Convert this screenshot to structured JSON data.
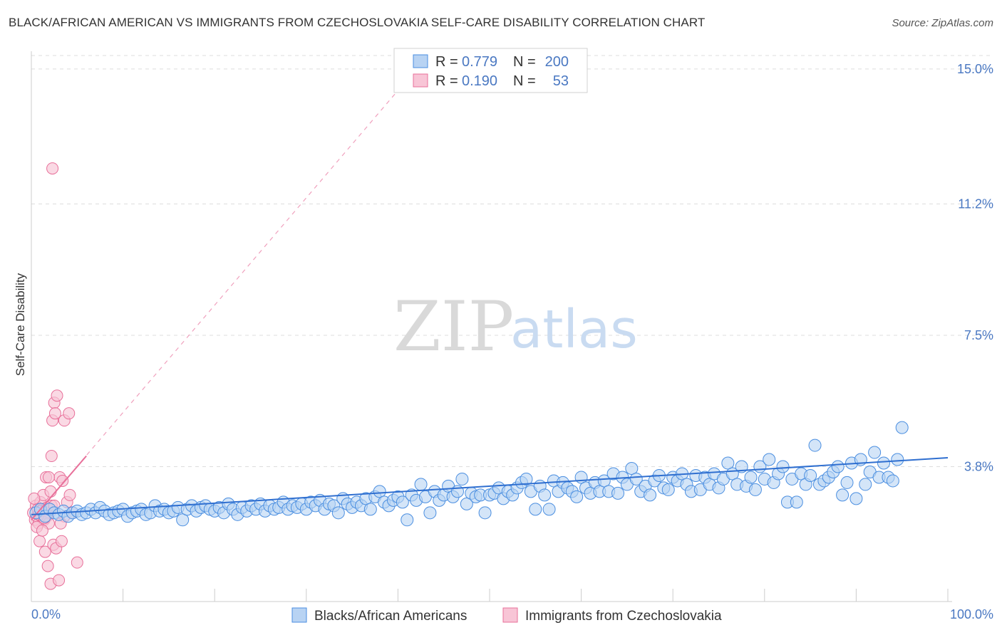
{
  "header": {
    "title": "BLACK/AFRICAN AMERICAN VS IMMIGRANTS FROM CZECHOSLOVAKIA SELF-CARE DISABILITY CORRELATION CHART",
    "source": "Source: ZipAtlas.com"
  },
  "watermark": {
    "zip": "ZIP",
    "atlas": "atlas"
  },
  "legend": {
    "rows": [
      {
        "r_label": "R =",
        "r_value": "0.779",
        "n_label": "N =",
        "n_value": "200"
      },
      {
        "r_label": "R =",
        "r_value": "0.190",
        "n_label": "N =",
        "n_value": "53"
      }
    ]
  },
  "chart_data": {
    "type": "scatter",
    "title": "BLACK/AFRICAN AMERICAN VS IMMIGRANTS FROM CZECHOSLOVAKIA SELF-CARE DISABILITY CORRELATION CHART",
    "xlabel": "",
    "ylabel": "Self-Care Disability",
    "xlim": [
      0,
      100
    ],
    "ylim": [
      0,
      15.5
    ],
    "x_tick_labels": [
      "0.0%",
      "100.0%"
    ],
    "y_ticks": [
      3.8,
      7.5,
      11.2,
      15.0
    ],
    "y_tick_labels": [
      "3.8%",
      "7.5%",
      "11.2%",
      "15.0%"
    ],
    "colors": {
      "blue": "#4a8ee0",
      "blue_fill": "#b8d3f3",
      "pink": "#e8709a",
      "pink_fill": "#f8c5d6",
      "tick": "#4a78c2"
    },
    "series": [
      {
        "name": "Blacks/African Americans",
        "color": "#4a8ee0",
        "r": 0.779,
        "n": 200,
        "trend": {
          "x": [
            0,
            100
          ],
          "y": [
            2.45,
            4.05
          ]
        },
        "points": [
          [
            0.5,
            2.5
          ],
          [
            1,
            2.6
          ],
          [
            1.5,
            2.4
          ],
          [
            2,
            2.6
          ],
          [
            2.5,
            2.5
          ],
          [
            3,
            2.45
          ],
          [
            3.5,
            2.55
          ],
          [
            4,
            2.4
          ],
          [
            4.5,
            2.5
          ],
          [
            5,
            2.55
          ],
          [
            5.5,
            2.45
          ],
          [
            6,
            2.5
          ],
          [
            6.5,
            2.6
          ],
          [
            7,
            2.5
          ],
          [
            7.5,
            2.65
          ],
          [
            8,
            2.55
          ],
          [
            8.5,
            2.45
          ],
          [
            9,
            2.5
          ],
          [
            9.5,
            2.55
          ],
          [
            10,
            2.6
          ],
          [
            10.5,
            2.4
          ],
          [
            11,
            2.5
          ],
          [
            11.5,
            2.55
          ],
          [
            12,
            2.6
          ],
          [
            12.5,
            2.45
          ],
          [
            13,
            2.5
          ],
          [
            13.5,
            2.7
          ],
          [
            14,
            2.55
          ],
          [
            14.5,
            2.6
          ],
          [
            15,
            2.5
          ],
          [
            15.5,
            2.55
          ],
          [
            16,
            2.65
          ],
          [
            16.5,
            2.3
          ],
          [
            17,
            2.6
          ],
          [
            17.5,
            2.7
          ],
          [
            18,
            2.55
          ],
          [
            18.5,
            2.65
          ],
          [
            19,
            2.7
          ],
          [
            19.5,
            2.6
          ],
          [
            20,
            2.55
          ],
          [
            20.5,
            2.65
          ],
          [
            21,
            2.5
          ],
          [
            21.5,
            2.75
          ],
          [
            22,
            2.6
          ],
          [
            22.5,
            2.45
          ],
          [
            23,
            2.65
          ],
          [
            23.5,
            2.55
          ],
          [
            24,
            2.7
          ],
          [
            24.5,
            2.6
          ],
          [
            25,
            2.75
          ],
          [
            25.5,
            2.55
          ],
          [
            26,
            2.7
          ],
          [
            26.5,
            2.6
          ],
          [
            27,
            2.65
          ],
          [
            27.5,
            2.8
          ],
          [
            28,
            2.6
          ],
          [
            28.5,
            2.7
          ],
          [
            29,
            2.65
          ],
          [
            29.5,
            2.75
          ],
          [
            30,
            2.6
          ],
          [
            30.5,
            2.8
          ],
          [
            31,
            2.7
          ],
          [
            31.5,
            2.85
          ],
          [
            32,
            2.6
          ],
          [
            32.5,
            2.75
          ],
          [
            33,
            2.7
          ],
          [
            33.5,
            2.5
          ],
          [
            34,
            2.9
          ],
          [
            34.5,
            2.75
          ],
          [
            35,
            2.65
          ],
          [
            35.5,
            2.8
          ],
          [
            36,
            2.7
          ],
          [
            36.5,
            2.9
          ],
          [
            37,
            2.6
          ],
          [
            37.5,
            2.95
          ],
          [
            38,
            3.1
          ],
          [
            38.5,
            2.8
          ],
          [
            39,
            2.7
          ],
          [
            39.5,
            2.85
          ],
          [
            40,
            2.95
          ],
          [
            40.5,
            2.8
          ],
          [
            41,
            2.3
          ],
          [
            41.5,
            3.0
          ],
          [
            42,
            2.85
          ],
          [
            42.5,
            3.3
          ],
          [
            43,
            2.95
          ],
          [
            43.5,
            2.5
          ],
          [
            44,
            3.1
          ],
          [
            44.5,
            2.85
          ],
          [
            45,
            3.0
          ],
          [
            45.5,
            3.25
          ],
          [
            46,
            2.95
          ],
          [
            46.5,
            3.1
          ],
          [
            47,
            3.45
          ],
          [
            47.5,
            2.75
          ],
          [
            48,
            3.05
          ],
          [
            48.5,
            2.95
          ],
          [
            49,
            3.0
          ],
          [
            49.5,
            2.5
          ],
          [
            50,
            3.0
          ],
          [
            50.5,
            3.05
          ],
          [
            51,
            3.2
          ],
          [
            51.5,
            2.9
          ],
          [
            52,
            3.1
          ],
          [
            52.5,
            3.0
          ],
          [
            53,
            3.2
          ],
          [
            53.5,
            3.35
          ],
          [
            54,
            3.45
          ],
          [
            54.5,
            3.1
          ],
          [
            55,
            2.6
          ],
          [
            55.5,
            3.25
          ],
          [
            56,
            3.0
          ],
          [
            56.5,
            2.6
          ],
          [
            57,
            3.4
          ],
          [
            57.5,
            3.1
          ],
          [
            58,
            3.35
          ],
          [
            58.5,
            3.2
          ],
          [
            59,
            3.1
          ],
          [
            59.5,
            2.95
          ],
          [
            60,
            3.5
          ],
          [
            60.5,
            3.2
          ],
          [
            61,
            3.05
          ],
          [
            61.5,
            3.35
          ],
          [
            62,
            3.1
          ],
          [
            62.5,
            3.4
          ],
          [
            63,
            3.1
          ],
          [
            63.5,
            3.6
          ],
          [
            64,
            3.05
          ],
          [
            64.5,
            3.5
          ],
          [
            65,
            3.3
          ],
          [
            65.5,
            3.75
          ],
          [
            66,
            3.45
          ],
          [
            66.5,
            3.1
          ],
          [
            67,
            3.25
          ],
          [
            67.5,
            3.0
          ],
          [
            68,
            3.4
          ],
          [
            68.5,
            3.55
          ],
          [
            69,
            3.2
          ],
          [
            69.5,
            3.15
          ],
          [
            70,
            3.5
          ],
          [
            70.5,
            3.4
          ],
          [
            71,
            3.6
          ],
          [
            71.5,
            3.3
          ],
          [
            72,
            3.1
          ],
          [
            72.5,
            3.55
          ],
          [
            73,
            3.15
          ],
          [
            73.5,
            3.5
          ],
          [
            74,
            3.3
          ],
          [
            74.5,
            3.6
          ],
          [
            75,
            3.2
          ],
          [
            75.5,
            3.45
          ],
          [
            76,
            3.9
          ],
          [
            76.5,
            3.6
          ],
          [
            77,
            3.3
          ],
          [
            77.5,
            3.8
          ],
          [
            78,
            3.25
          ],
          [
            78.5,
            3.5
          ],
          [
            79,
            3.15
          ],
          [
            79.5,
            3.8
          ],
          [
            80,
            3.45
          ],
          [
            80.5,
            4.0
          ],
          [
            81,
            3.35
          ],
          [
            81.5,
            3.6
          ],
          [
            82,
            3.8
          ],
          [
            82.5,
            2.8
          ],
          [
            83,
            3.45
          ],
          [
            83.5,
            2.8
          ],
          [
            84,
            3.6
          ],
          [
            84.5,
            3.3
          ],
          [
            85,
            3.55
          ],
          [
            85.5,
            4.4
          ],
          [
            86,
            3.3
          ],
          [
            86.5,
            3.4
          ],
          [
            87,
            3.5
          ],
          [
            87.5,
            3.65
          ],
          [
            88,
            3.8
          ],
          [
            88.5,
            3.0
          ],
          [
            89,
            3.35
          ],
          [
            89.5,
            3.9
          ],
          [
            90,
            2.9
          ],
          [
            90.5,
            4.0
          ],
          [
            91,
            3.3
          ],
          [
            91.5,
            3.65
          ],
          [
            92,
            4.2
          ],
          [
            92.5,
            3.5
          ],
          [
            93,
            3.9
          ],
          [
            93.5,
            3.5
          ],
          [
            94,
            3.4
          ],
          [
            94.5,
            4.0
          ],
          [
            95,
            4.9
          ]
        ]
      },
      {
        "name": "Immigrants from Czechoslovakia",
        "color": "#e8709a",
        "r": 0.19,
        "n": 53,
        "trend": {
          "x": [
            0,
            6
          ],
          "y": [
            2.3,
            4.1
          ]
        },
        "trend_extended": {
          "x": [
            0,
            42
          ],
          "y": [
            2.3,
            15.0
          ]
        },
        "points": [
          [
            0.2,
            2.5
          ],
          [
            0.4,
            2.3
          ],
          [
            0.5,
            2.7
          ],
          [
            0.6,
            2.4
          ],
          [
            0.7,
            2.6
          ],
          [
            0.8,
            2.2
          ],
          [
            0.9,
            2.5
          ],
          [
            1.0,
            2.8
          ],
          [
            1.1,
            2.4
          ],
          [
            1.2,
            2.6
          ],
          [
            1.3,
            3.0
          ],
          [
            1.4,
            2.3
          ],
          [
            1.5,
            2.5
          ],
          [
            1.6,
            3.5
          ],
          [
            1.7,
            2.4
          ],
          [
            1.8,
            2.6
          ],
          [
            1.9,
            2.2
          ],
          [
            2.0,
            2.5
          ],
          [
            2.1,
            3.1
          ],
          [
            2.2,
            2.7
          ],
          [
            0.3,
            2.9
          ],
          [
            0.6,
            2.1
          ],
          [
            0.9,
            1.7
          ],
          [
            1.2,
            2.0
          ],
          [
            1.5,
            1.4
          ],
          [
            1.8,
            1.0
          ],
          [
            2.1,
            0.5
          ],
          [
            2.4,
            1.6
          ],
          [
            2.7,
            1.5
          ],
          [
            3.0,
            0.6
          ],
          [
            3.3,
            1.7
          ],
          [
            3.6,
            2.4
          ],
          [
            3.9,
            2.8
          ],
          [
            4.2,
            3.0
          ],
          [
            4.5,
            2.5
          ],
          [
            5.0,
            1.1
          ],
          [
            0.8,
            2.45
          ],
          [
            1.1,
            2.55
          ],
          [
            1.4,
            2.35
          ],
          [
            1.7,
            2.65
          ],
          [
            2.3,
            5.1
          ],
          [
            2.5,
            5.6
          ],
          [
            2.6,
            5.3
          ],
          [
            2.8,
            5.8
          ],
          [
            3.1,
            3.5
          ],
          [
            3.4,
            3.4
          ],
          [
            2.2,
            4.1
          ],
          [
            3.6,
            5.1
          ],
          [
            4.1,
            5.3
          ],
          [
            2.3,
            12.2
          ],
          [
            1.9,
            3.5
          ],
          [
            2.5,
            2.7
          ],
          [
            3.2,
            2.2
          ]
        ]
      }
    ]
  },
  "bottom_legend": {
    "items": [
      {
        "label": "Blacks/African Americans"
      },
      {
        "label": "Immigrants from Czechoslovakia"
      }
    ]
  }
}
